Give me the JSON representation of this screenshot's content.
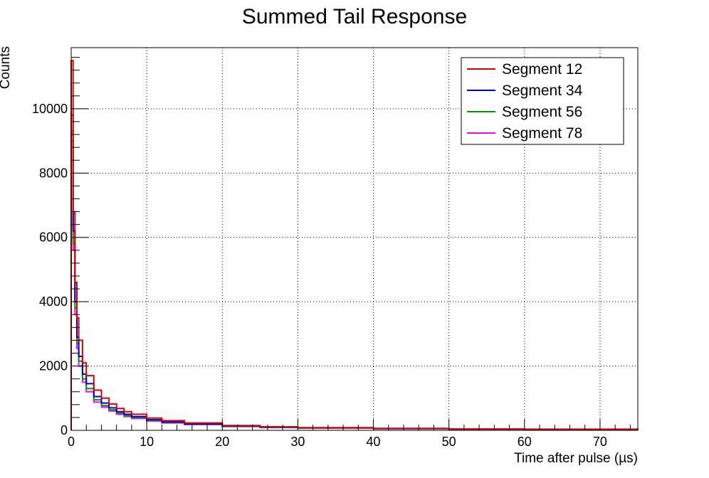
{
  "chart_data": {
    "type": "line",
    "title": "Summed Tail Response",
    "xlabel": "Time after pulse (µs)",
    "ylabel": "Counts",
    "xlim": [
      0,
      75
    ],
    "ylim": [
      0,
      11900
    ],
    "x_ticks": [
      0,
      10,
      20,
      30,
      40,
      50,
      60,
      70
    ],
    "x_tick_labels": [
      "0",
      "10",
      "20",
      "30",
      "40",
      "50",
      "60",
      "70"
    ],
    "y_ticks": [
      0,
      2000,
      4000,
      6000,
      8000,
      10000
    ],
    "y_tick_labels": [
      "0",
      "2000",
      "4000",
      "6000",
      "8000",
      "10000"
    ],
    "grid": true,
    "legend_position": "top-right",
    "series": [
      {
        "name": "Segment 12",
        "color": "#dd0000",
        "x": [
          0,
          0.25,
          0.5,
          0.75,
          1,
          1.5,
          2,
          3,
          4,
          5,
          6,
          7,
          8,
          10,
          12,
          15,
          20,
          25,
          30,
          40,
          50,
          60,
          75
        ],
        "y": [
          11500,
          6800,
          4600,
          3500,
          2800,
          2100,
          1700,
          1250,
          1000,
          820,
          680,
          580,
          500,
          380,
          300,
          230,
          150,
          110,
          85,
          60,
          45,
          35,
          25
        ]
      },
      {
        "name": "Segment 34",
        "color": "#0000cc",
        "x": [
          0,
          0.25,
          0.5,
          0.75,
          1,
          1.5,
          2,
          3,
          4,
          5,
          6,
          7,
          8,
          10,
          12,
          15,
          20,
          25,
          30,
          40,
          50,
          60,
          75
        ],
        "y": [
          9800,
          6200,
          4000,
          2900,
          2300,
          1750,
          1450,
          1050,
          850,
          700,
          580,
          500,
          430,
          330,
          260,
          200,
          140,
          100,
          80,
          55,
          42,
          32,
          22
        ]
      },
      {
        "name": "Segment 56",
        "color": "#009900",
        "x": [
          0,
          0.25,
          0.5,
          0.75,
          1,
          1.5,
          2,
          3,
          4,
          5,
          6,
          7,
          8,
          10,
          12,
          15,
          20,
          25,
          30,
          40,
          50,
          60,
          75
        ],
        "y": [
          9300,
          5800,
          3800,
          2700,
          2150,
          1600,
          1300,
          950,
          770,
          640,
          540,
          460,
          400,
          310,
          250,
          190,
          130,
          95,
          75,
          52,
          40,
          30,
          20
        ]
      },
      {
        "name": "Segment 78",
        "color": "#ff00ff",
        "x": [
          0,
          0.25,
          0.5,
          0.75,
          1,
          1.5,
          2,
          3,
          4,
          5,
          6,
          7,
          8,
          10,
          12,
          15,
          20,
          25,
          30,
          40,
          50,
          60,
          75
        ],
        "y": [
          9000,
          5600,
          3600,
          2550,
          2000,
          1500,
          1200,
          880,
          720,
          600,
          500,
          430,
          370,
          290,
          230,
          180,
          120,
          90,
          70,
          50,
          38,
          28,
          18
        ]
      }
    ]
  }
}
